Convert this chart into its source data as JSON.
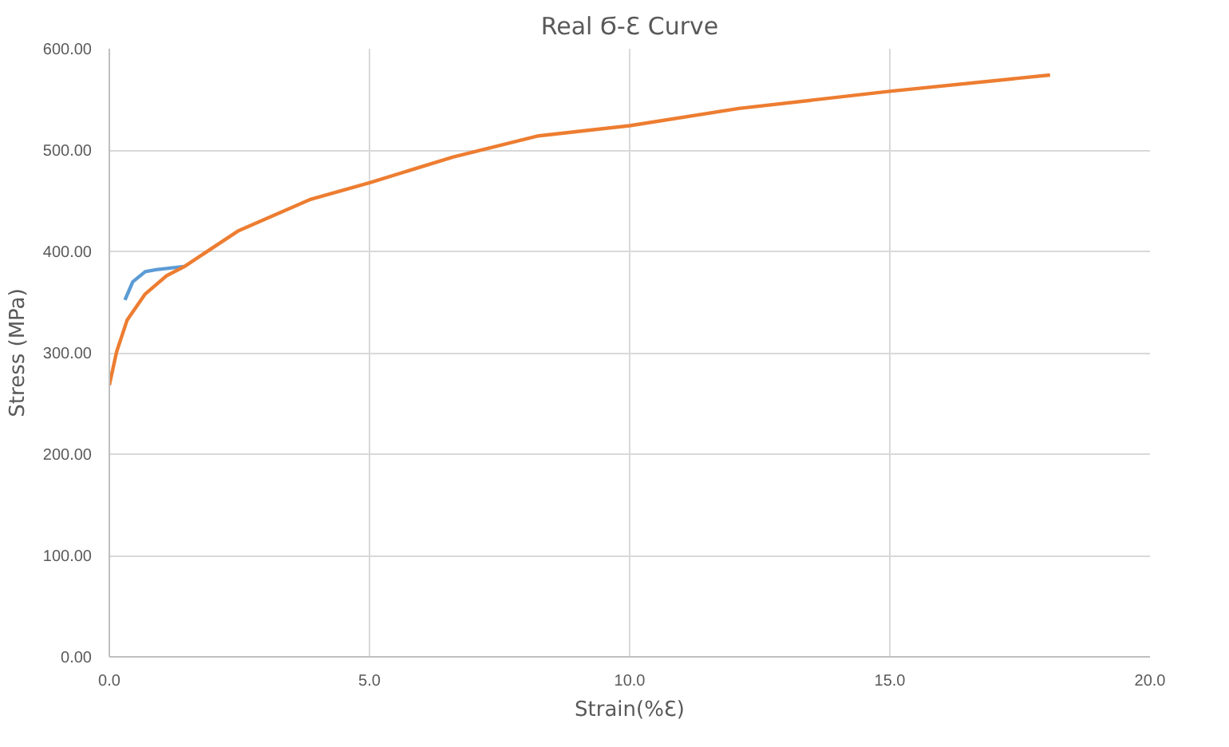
{
  "chart_data": {
    "type": "line",
    "title": "Real Ϭ-Ɛ Curve",
    "xlabel": "Strain(%Ɛ)",
    "ylabel": "Stress (MPa)",
    "xlim": [
      0,
      20
    ],
    "ylim": [
      0,
      600
    ],
    "xticks": [
      {
        "value": 0,
        "label": "0.0"
      },
      {
        "value": 5,
        "label": "5.0"
      },
      {
        "value": 10,
        "label": "10.0"
      },
      {
        "value": 15,
        "label": "15.0"
      },
      {
        "value": 20,
        "label": "20.0"
      }
    ],
    "yticks": [
      {
        "value": 0,
        "label": "0.00"
      },
      {
        "value": 100,
        "label": "100.00"
      },
      {
        "value": 200,
        "label": "200.00"
      },
      {
        "value": 300,
        "label": "300.00"
      },
      {
        "value": 400,
        "label": "400.00"
      },
      {
        "value": 500,
        "label": "500.00"
      },
      {
        "value": 600,
        "label": "600.00"
      }
    ],
    "grid": true,
    "marker": "none",
    "line_style": "solid",
    "series": [
      {
        "color": "#5b9bd5",
        "x": [
          0.3,
          0.45,
          0.69,
          0.9,
          1.24,
          1.44
        ],
        "values": [
          352,
          370,
          380,
          382,
          384,
          385
        ]
      },
      {
        "color": "#ed7d31",
        "x": [
          0,
          0.14,
          0.34,
          0.69,
          1.1,
          1.44,
          2.47,
          3.85,
          5.02,
          6.6,
          8.25,
          10,
          12.1,
          15,
          18.08
        ],
        "values": [
          268,
          301,
          332,
          358,
          376,
          385,
          420,
          451,
          468,
          493,
          514,
          524,
          541,
          558,
          574
        ]
      }
    ]
  }
}
